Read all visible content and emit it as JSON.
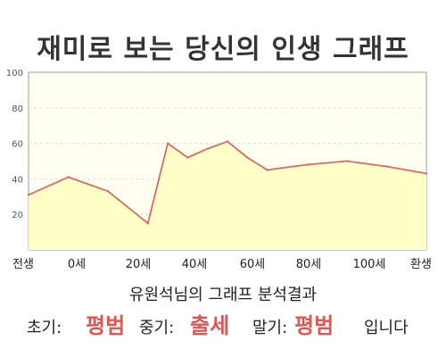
{
  "title": "재미로 보는 당신의 인생 그래프",
  "summary": "유원석님의 그래프 분석결과",
  "results": {
    "early_label": "초기:",
    "early_value": "평범",
    "mid_label": "중기:",
    "mid_value": "출세",
    "late_label": "말기:",
    "late_value": "평범",
    "suffix": "입니다"
  },
  "colors": {
    "line": "#e06666",
    "fill": "#ffffc8",
    "plot_bg": "#fffff0",
    "highlight": "#e05555"
  },
  "chart_data": {
    "type": "area",
    "title": "재미로 보는 당신의 인생 그래프",
    "xlabel": "",
    "ylabel": "",
    "ylim": [
      0,
      100
    ],
    "y_ticks": [
      "100",
      "80",
      "60",
      "40",
      "20"
    ],
    "x_tick_labels": [
      "전생",
      "0세",
      "20세",
      "40세",
      "60세",
      "80세",
      "100세",
      "환생"
    ],
    "grid": true,
    "legend": "none",
    "x": [
      -10,
      0,
      10,
      20,
      25,
      30,
      35,
      40,
      45,
      50,
      60,
      70,
      80,
      90
    ],
    "series": [
      {
        "values": [
          31,
          41,
          33,
          15,
          60,
          52,
          57,
          61,
          52,
          45,
          48,
          50,
          47,
          43
        ]
      }
    ]
  }
}
